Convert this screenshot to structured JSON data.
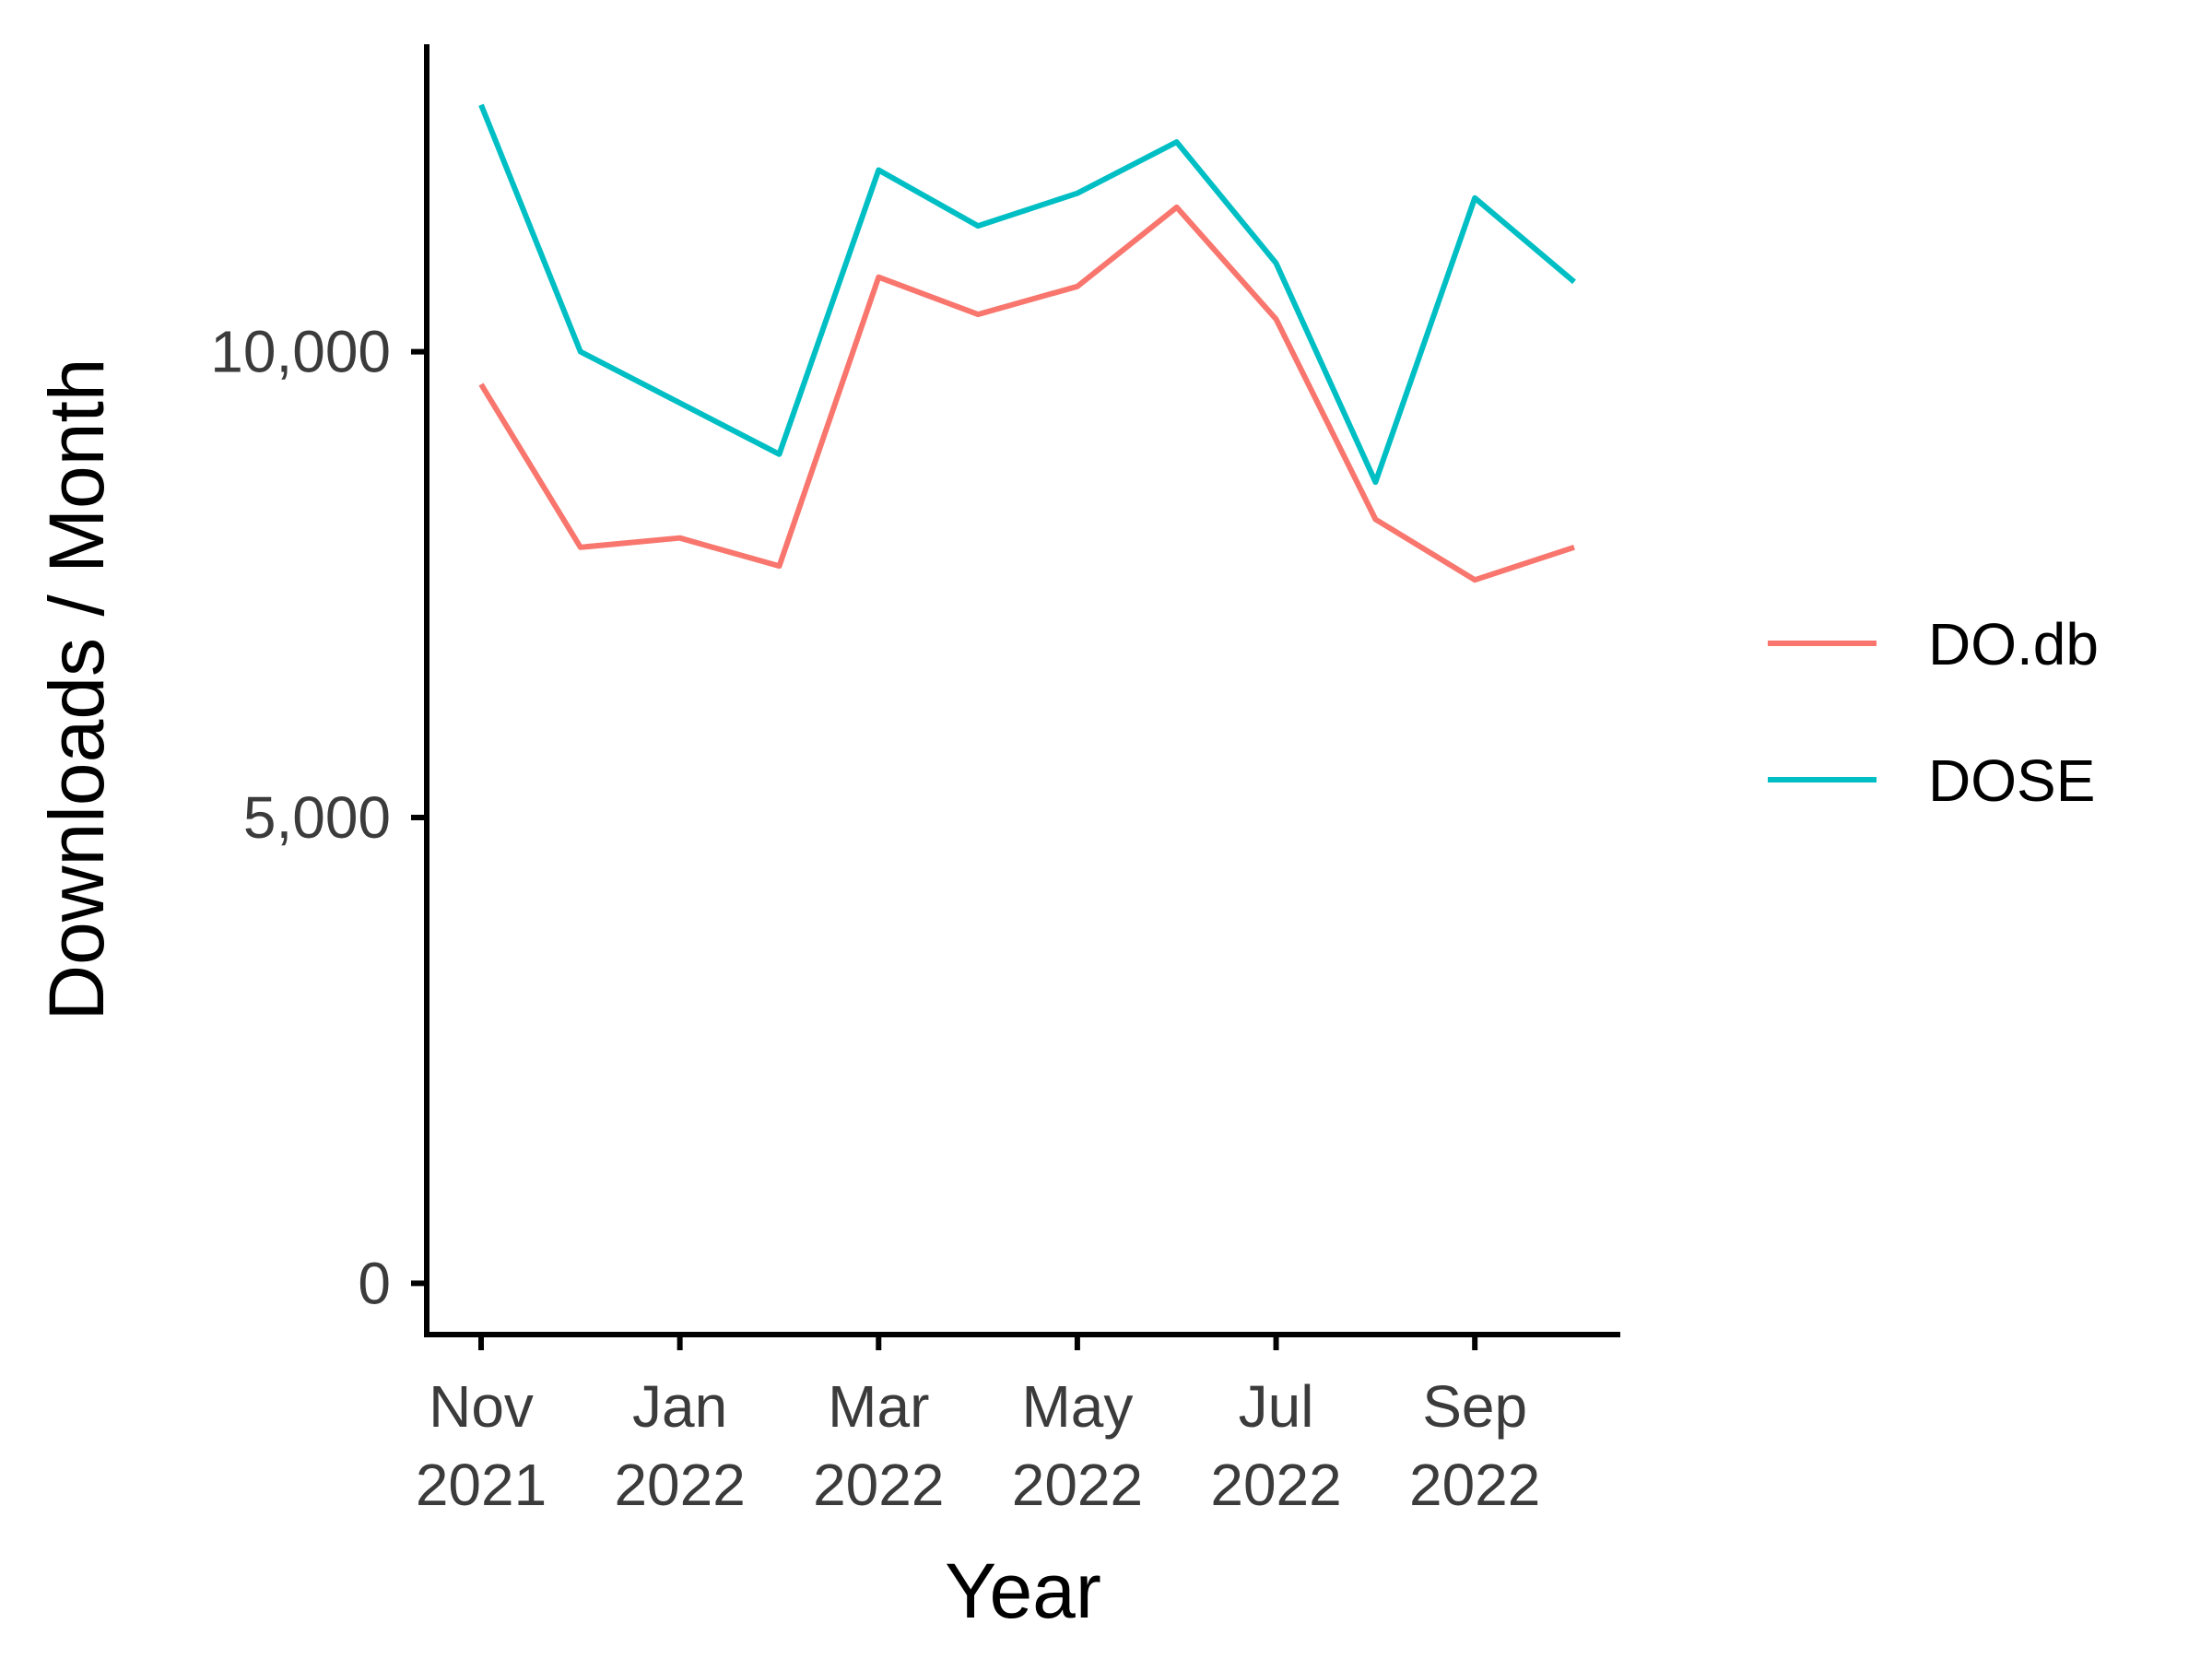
{
  "chart_data": {
    "type": "line",
    "title": "",
    "xlabel": "Year",
    "ylabel": "Downloads / Month",
    "x": [
      "2021-11",
      "2021-12",
      "2022-01",
      "2022-02",
      "2022-03",
      "2022-04",
      "2022-05",
      "2022-06",
      "2022-07",
      "2022-08",
      "2022-09",
      "2022-10"
    ],
    "x_ticks": [
      {
        "x": "2021-11",
        "line1": "Nov",
        "line2": "2021"
      },
      {
        "x": "2022-01",
        "line1": "Jan",
        "line2": "2022"
      },
      {
        "x": "2022-03",
        "line1": "Mar",
        "line2": "2022"
      },
      {
        "x": "2022-05",
        "line1": "May",
        "line2": "2022"
      },
      {
        "x": "2022-07",
        "line1": "Jul",
        "line2": "2022"
      },
      {
        "x": "2022-09",
        "line1": "Sep",
        "line2": "2022"
      }
    ],
    "y_ticks": [
      {
        "value": 0,
        "label": "0"
      },
      {
        "value": 5000,
        "label": "5,000"
      },
      {
        "value": 10000,
        "label": "10,000"
      }
    ],
    "ylim": [
      -550,
      13300
    ],
    "series": [
      {
        "name": "DO.db",
        "color": "#F8766D",
        "values": [
          9650,
          7900,
          8000,
          7700,
          10800,
          10400,
          10700,
          11550,
          10350,
          8200,
          7550,
          7900
        ]
      },
      {
        "name": "DOSE",
        "color": "#00BFC4",
        "values": [
          12650,
          10000,
          9450,
          8900,
          11950,
          11350,
          11700,
          12250,
          10950,
          8600,
          11650,
          10750
        ]
      }
    ],
    "grid": false,
    "legend": "right"
  }
}
